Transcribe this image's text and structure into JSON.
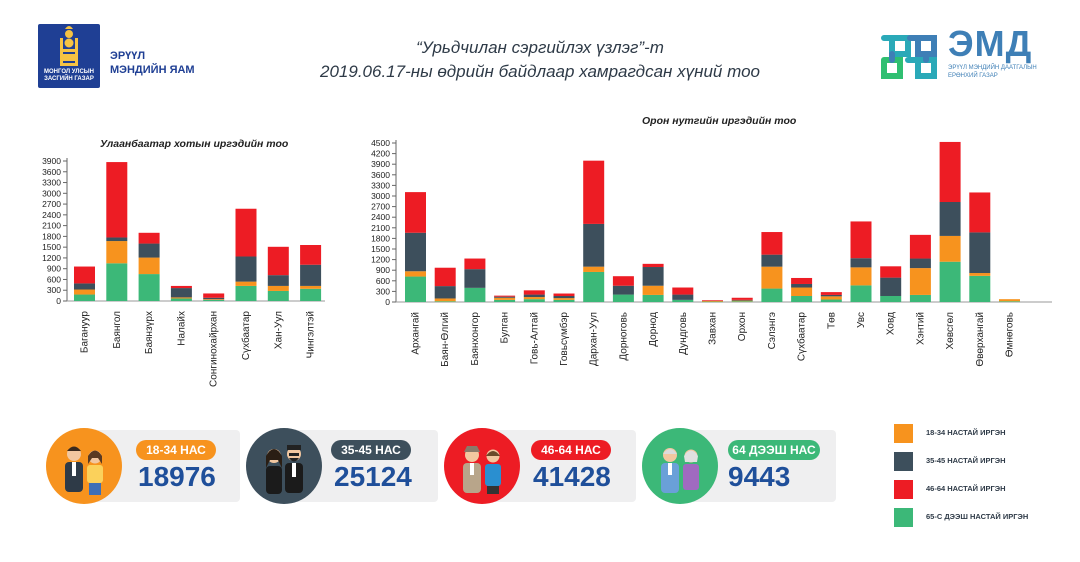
{
  "header": {
    "title_line1": "“Урьдчилан сэргийлэх үзлэг”-т",
    "title_line2": "2019.06.17-ны өдрийн байдлаар хамрагдсан хүний тоо",
    "ministry_line1": "ЭРҮҮЛ",
    "ministry_line2": "МЭНДИЙН ЯАМ",
    "logo_org_line1": "МОНГОЛ УЛСЫН",
    "logo_org_line2": "ЗАСГИЙН ГАЗАР",
    "emd_title": "ЭМД",
    "emd_sub_line1": "ЭРҮҮЛ МЭНДИЙН ДААТГАЛЫН",
    "emd_sub_line2": "ЕРӨНХИЙ ГАЗАР"
  },
  "colors": {
    "c18_34": "#f7931e",
    "c35_45": "#3d4f5c",
    "c46_64": "#ed1c24",
    "c65": "#3cb878"
  },
  "chart_data": [
    {
      "type": "bar",
      "stacked": true,
      "title": "Улаанбаатар хотын иргэдийн тоо",
      "categories": [
        "Багануур",
        "Баянгол",
        "Баянзүрх",
        "Налайх",
        "Сонгинохайрхан",
        "Сүхбаатар",
        "Хан-Уул",
        "Чингэлтэй"
      ],
      "ylim": [
        0,
        3900
      ],
      "yticks": [
        0,
        300,
        600,
        900,
        1200,
        1500,
        1800,
        2100,
        2400,
        2700,
        3000,
        3300,
        3600,
        3900
      ],
      "grid": false,
      "series": [
        {
          "name": "65-С ДЭЭШ НАСТАЙ ИРГЭН",
          "color_key": "c65",
          "values": [
            180,
            1050,
            750,
            70,
            30,
            420,
            280,
            340
          ]
        },
        {
          "name": "18-34 НАСТАЙ ИРГЭН",
          "color_key": "c18_34",
          "values": [
            140,
            620,
            460,
            30,
            20,
            120,
            140,
            80
          ]
        },
        {
          "name": "35-45 НАСТАЙ ИРГЭН",
          "color_key": "c35_45",
          "values": [
            170,
            100,
            390,
            260,
            40,
            700,
            300,
            590
          ]
        },
        {
          "name": "46-64 НАСТАЙ ИРГЭН",
          "color_key": "c46_64",
          "values": [
            470,
            2100,
            300,
            60,
            120,
            1330,
            790,
            550
          ]
        }
      ]
    },
    {
      "type": "bar",
      "stacked": true,
      "title": "Орон нутгийн иргэдийн тоо",
      "categories": [
        "Архангай",
        "Баян-Өлгий",
        "Баянхонгор",
        "Булган",
        "Говь-Алтай",
        "Говьсүмбэр",
        "Дархан-Уул",
        "Дорноговь",
        "Дорнод",
        "Дундговь",
        "Завхан",
        "Орхон",
        "Сэлэнгэ",
        "Сүхбаатар",
        "Төв",
        "Увс",
        "Ховд",
        "Хэнтий",
        "Хөвсгөл",
        "Өвөрхангай",
        "Өмнөговь"
      ],
      "ylim": [
        0,
        4500
      ],
      "yticks": [
        0,
        300,
        600,
        900,
        1200,
        1500,
        1800,
        2100,
        2400,
        2700,
        3000,
        3300,
        3600,
        3900,
        4200,
        4500
      ],
      "grid": false,
      "series": [
        {
          "name": "65-С ДЭЭШ НАСТАЙ ИРГЭН",
          "color_key": "c65",
          "values": [
            720,
            20,
            400,
            60,
            80,
            60,
            850,
            210,
            200,
            60,
            10,
            20,
            380,
            170,
            70,
            470,
            170,
            200,
            1140,
            740,
            20
          ]
        },
        {
          "name": "18-34 НАСТАЙ ИРГЭН",
          "color_key": "c18_34",
          "values": [
            150,
            80,
            0,
            60,
            60,
            50,
            150,
            0,
            260,
            0,
            20,
            20,
            620,
            240,
            90,
            510,
            0,
            760,
            730,
            80,
            60
          ]
        },
        {
          "name": "35-45 НАСТАЙ ИРГЭН",
          "color_key": "c35_45",
          "values": [
            1090,
            350,
            530,
            30,
            70,
            60,
            1210,
            250,
            530,
            150,
            0,
            20,
            340,
            100,
            40,
            260,
            520,
            270,
            960,
            1150,
            0
          ]
        },
        {
          "name": "46-64 НАСТАЙ ИРГЭН",
          "color_key": "c46_64",
          "values": [
            1150,
            520,
            300,
            30,
            120,
            70,
            1790,
            270,
            90,
            200,
            20,
            60,
            640,
            170,
            80,
            1040,
            320,
            670,
            1700,
            1130,
            0
          ]
        }
      ]
    }
  ],
  "age_groups": [
    {
      "label": "18-34 НАС",
      "value": "18976",
      "color": "#f7931e",
      "text_color": "#1f4f9a",
      "icon": "young-couple-icon"
    },
    {
      "label": "35-45 НАС",
      "value": "25124",
      "color": "#3d4f5c",
      "text_color": "#1f4f9a",
      "icon": "middle-age-couple-icon"
    },
    {
      "label": "46-64 НАС",
      "value": "41428",
      "color": "#ed1c24",
      "text_color": "#1f4f9a",
      "icon": "older-couple-icon"
    },
    {
      "label": "64 ДЭЭШ НАС",
      "value": "9443",
      "color": "#3cb878",
      "text_color": "#1f4f9a",
      "icon": "elderly-couple-icon"
    }
  ],
  "legend": [
    {
      "label": "18-34 НАСТАЙ ИРГЭН",
      "color": "#f7931e"
    },
    {
      "label": "35-45 НАСТАЙ ИРГЭН",
      "color": "#3d4f5c"
    },
    {
      "label": "46-64 НАСТАЙ ИРГЭН",
      "color": "#ed1c24"
    },
    {
      "label": "65-С ДЭЭШ НАСТАЙ ИРГЭН",
      "color": "#3cb878"
    }
  ]
}
